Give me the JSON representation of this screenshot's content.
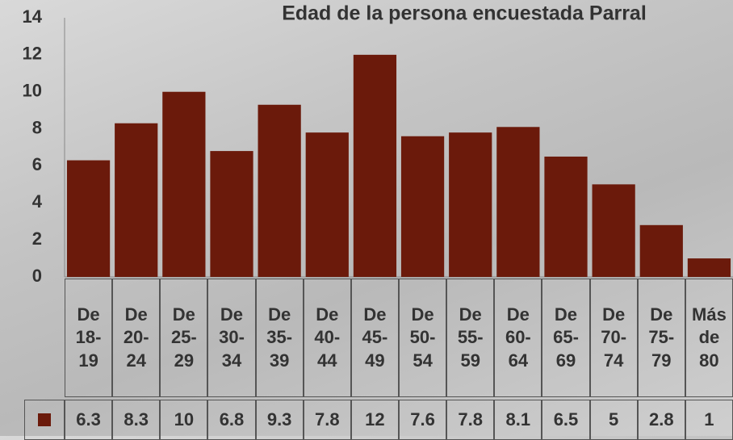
{
  "chart_data": {
    "type": "bar",
    "title": "Edad de la persona encuestada Parral",
    "categories": [
      "De 18-19",
      "De 20-24",
      "De 25-29",
      "De 30-34",
      "De 35-39",
      "De 40-44",
      "De 45-49",
      "De 50-54",
      "De 55-59",
      "De 60-64",
      "De 65-69",
      "De 70-74",
      "De 75-79",
      "Más de 80"
    ],
    "values": [
      6.3,
      8.3,
      10,
      6.8,
      9.3,
      7.8,
      12,
      7.6,
      7.8,
      8.1,
      6.5,
      5,
      2.8,
      1
    ],
    "color": "#6b1a0b",
    "ylim": [
      0,
      14
    ],
    "yticks": [
      0,
      2,
      4,
      6,
      8,
      10,
      12,
      14
    ],
    "grid": false,
    "data_table": true
  }
}
